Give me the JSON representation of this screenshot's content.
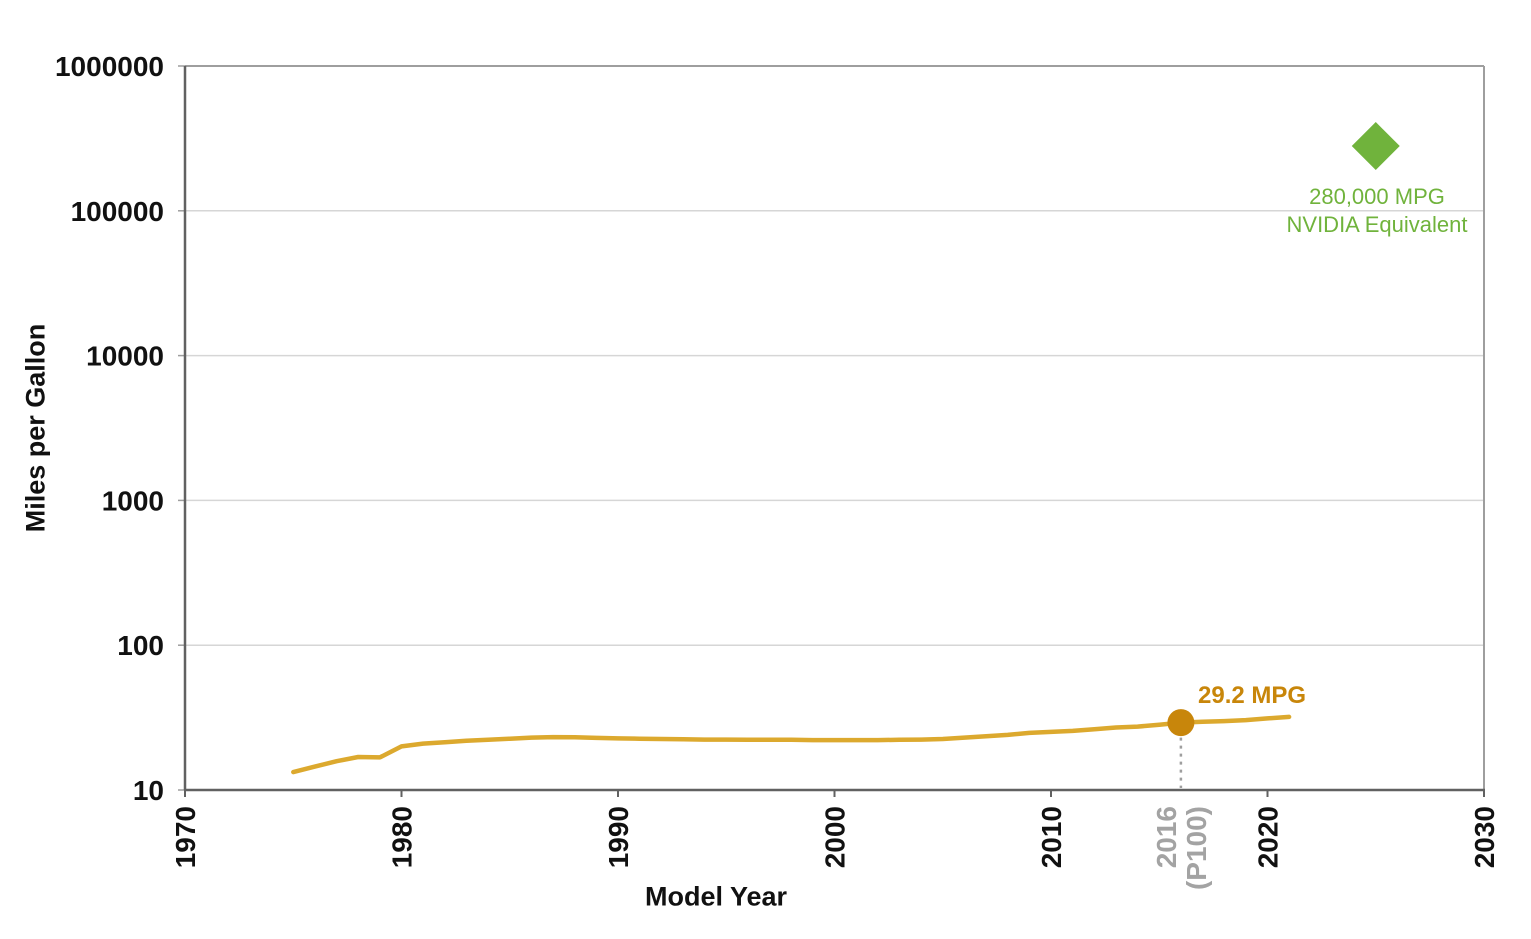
{
  "chart_data": {
    "type": "line",
    "title": "",
    "xlabel": "Model Year",
    "ylabel": "Miles per Gallon",
    "x_axis": {
      "min": 1970,
      "max": 2030,
      "ticks": [
        1970,
        1980,
        1990,
        2000,
        2010,
        2020,
        2030
      ]
    },
    "y_axis": {
      "scale": "log",
      "min": 10,
      "max": 1000000,
      "ticks": [
        10,
        100,
        1000,
        10000,
        100000,
        1000000
      ],
      "tick_labels": [
        "10",
        "100",
        "1000",
        "10000",
        "100000",
        "1000000"
      ]
    },
    "grid": "horizontal",
    "legend": "none",
    "series": [
      {
        "color": "#DCA92E",
        "x": [
          1975,
          1976,
          1977,
          1978,
          1979,
          1980,
          1981,
          1982,
          1983,
          1984,
          1985,
          1986,
          1987,
          1988,
          1989,
          1990,
          1991,
          1992,
          1993,
          1994,
          1995,
          1996,
          1997,
          1998,
          1999,
          2000,
          2001,
          2002,
          2003,
          2004,
          2005,
          2006,
          2007,
          2008,
          2009,
          2010,
          2011,
          2012,
          2013,
          2014,
          2015,
          2016,
          2017,
          2018,
          2019,
          2020,
          2021
        ],
        "y": [
          13.3,
          14.5,
          15.8,
          16.9,
          16.8,
          20.0,
          20.9,
          21.4,
          21.9,
          22.2,
          22.6,
          23.0,
          23.2,
          23.1,
          22.9,
          22.7,
          22.6,
          22.5,
          22.4,
          22.3,
          22.3,
          22.2,
          22.2,
          22.2,
          22.1,
          22.1,
          22.1,
          22.1,
          22.2,
          22.3,
          22.5,
          23.0,
          23.5,
          24.0,
          24.8,
          25.2,
          25.6,
          26.3,
          27.0,
          27.4,
          28.2,
          29.2,
          29.6,
          29.9,
          30.4,
          31.2,
          32.0
        ]
      }
    ],
    "highlight": {
      "year": 2016,
      "value": 29.2,
      "label": "29.2 MPG",
      "axis_label_line1": "2016",
      "axis_label_line2": "(P100)",
      "dot_color": "#C8860B",
      "label_color": "#C8860A",
      "axis_label_color": "#A3A3A3"
    },
    "nvidia_point": {
      "year": 2025,
      "value": 280000,
      "marker": "diamond",
      "label_line1": "280,000 MPG",
      "label_line2": "NVIDIA Equivalent",
      "color": "#70B33C"
    }
  },
  "colors": {
    "background": "#FFFFFF",
    "gridline": "#D6D6D6",
    "axis_line": "#616161",
    "border": "#9E9E9E",
    "tick_label": "#111111",
    "dropline": "#9E9E9E"
  }
}
